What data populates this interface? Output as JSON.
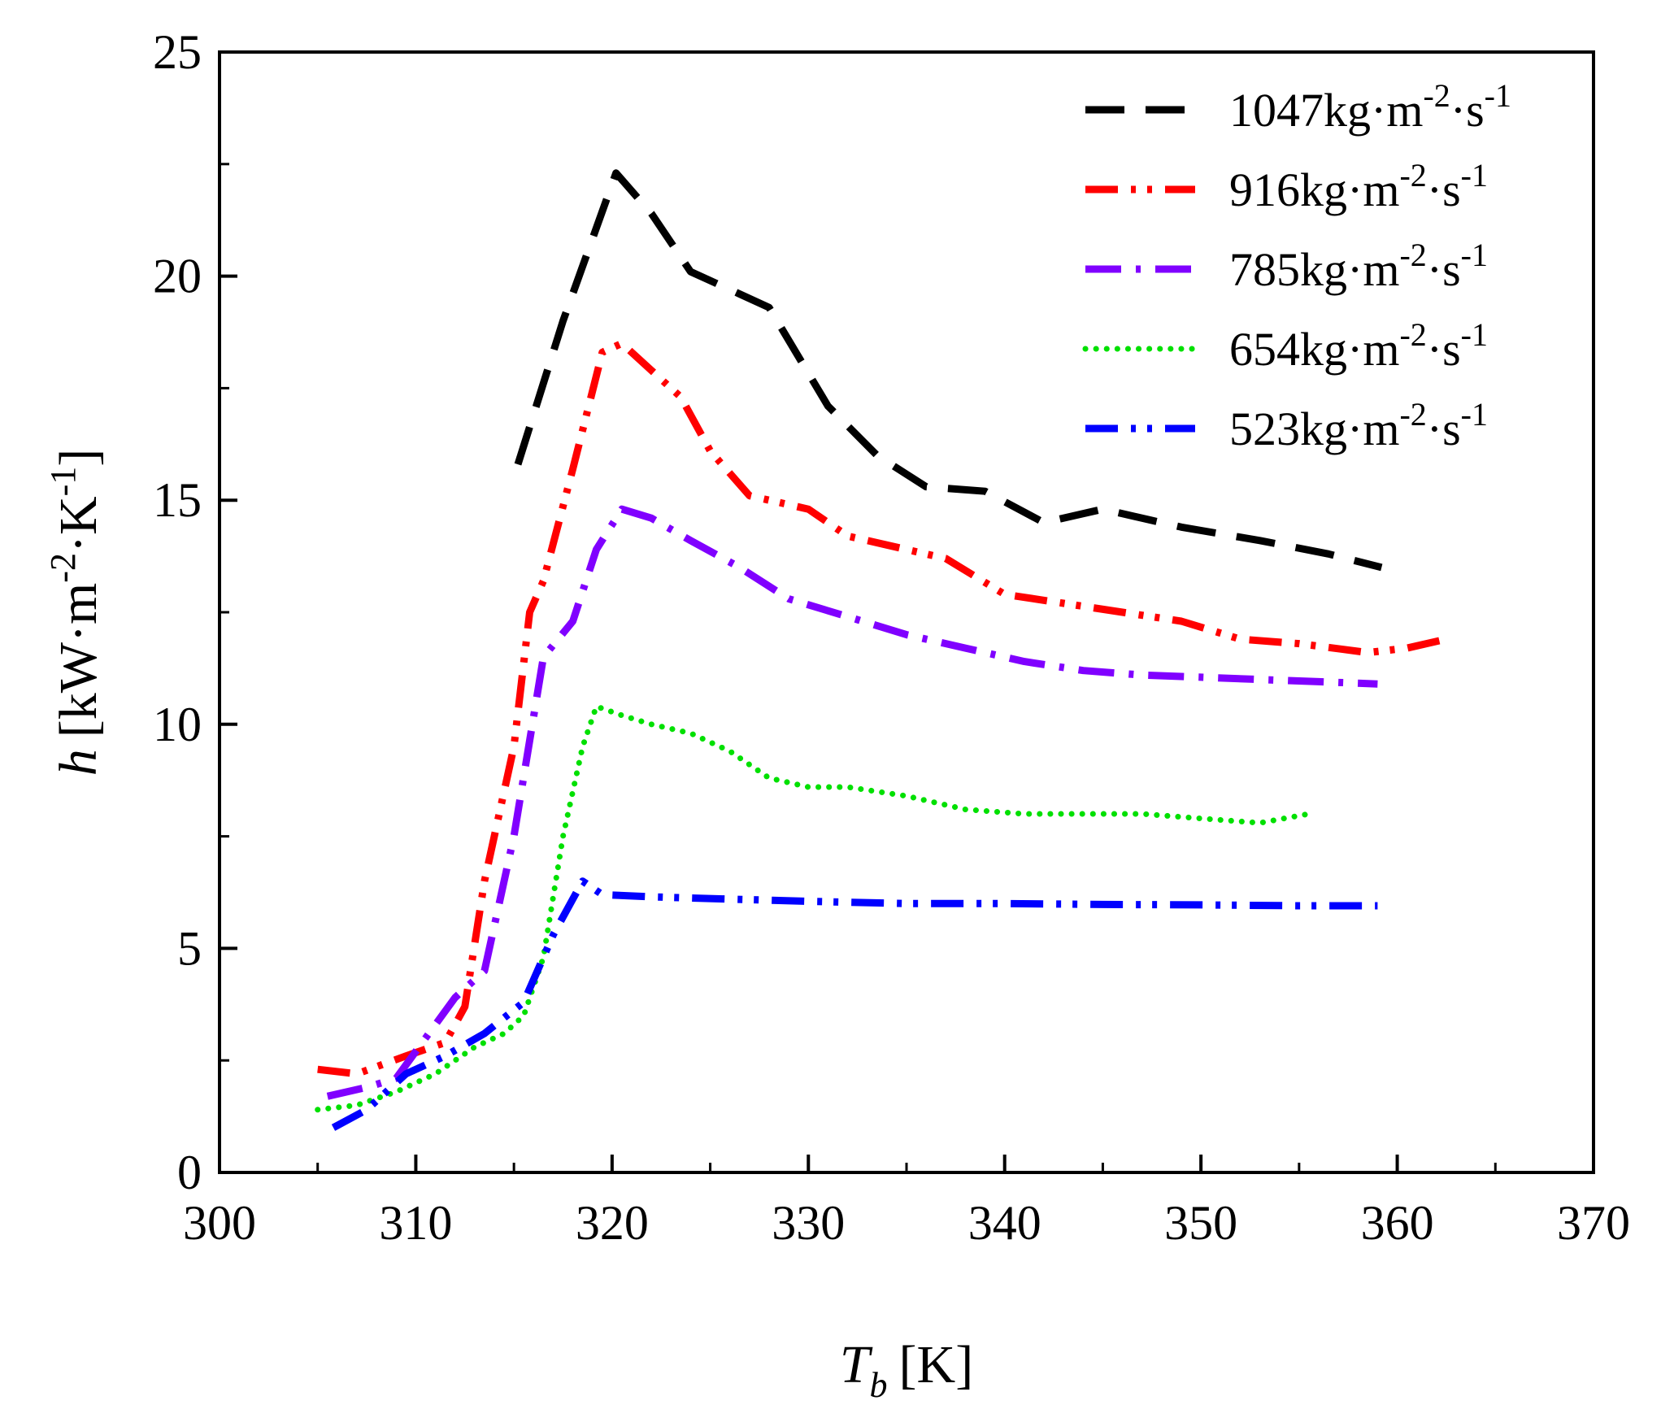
{
  "chart_data": {
    "type": "line",
    "title": "",
    "xlabel": {
      "main": "T",
      "sub": "b",
      "unit": "[K]"
    },
    "ylabel": {
      "var": "h",
      "unit_pre": "[kW·m",
      "sup1": "-2",
      "mid": "·K",
      "sup2": "-1",
      "post": "]"
    },
    "xlim": [
      300,
      370
    ],
    "ylim": [
      0,
      25
    ],
    "xticks": [
      300,
      310,
      320,
      330,
      340,
      350,
      360,
      370
    ],
    "yticks": [
      0,
      5,
      10,
      15,
      20,
      25
    ],
    "grid": false,
    "legend_position": "top-right",
    "series": [
      {
        "name": "1047kg·m-2·s-1",
        "label": {
          "pre": "1047kg·m",
          "sup1": "-2",
          "mid": "·s",
          "sup2": "-1"
        },
        "color": "#000000",
        "style": "dash",
        "x": [
          315.2,
          317.5,
          320.2,
          322,
          324,
          326.5,
          328,
          331,
          333.5,
          336,
          339,
          342,
          345,
          349,
          353,
          356.5,
          359.2
        ],
        "y": [
          15.8,
          19.0,
          22.3,
          21.4,
          20.1,
          19.6,
          19.3,
          17.1,
          16.0,
          15.3,
          15.2,
          14.5,
          14.8,
          14.4,
          14.1,
          13.8,
          13.5
        ]
      },
      {
        "name": "916kg·m-2·s-1",
        "label": {
          "pre": "916kg·m",
          "sup1": "-2",
          "mid": "·s",
          "sup2": "-1"
        },
        "color": "#ff0000",
        "style": "dash-dot-dot",
        "x": [
          305,
          307,
          309.5,
          311.5,
          312.5,
          313.5,
          315,
          315.8,
          316.5,
          318,
          319.5,
          320.5,
          322,
          323.5,
          325,
          327,
          330,
          332,
          334,
          337,
          340,
          343,
          346,
          349,
          352,
          355,
          358.5,
          360.5,
          362.5
        ],
        "y": [
          2.3,
          2.2,
          2.6,
          2.9,
          3.7,
          6.5,
          9.5,
          12.5,
          13.2,
          15.7,
          18.3,
          18.5,
          17.9,
          17.3,
          16.1,
          15.1,
          14.8,
          14.2,
          14.0,
          13.7,
          12.9,
          12.7,
          12.5,
          12.3,
          11.9,
          11.8,
          11.6,
          11.7,
          11.9
        ]
      },
      {
        "name": "785kg·m-2·s-1",
        "label": {
          "pre": "785kg·m",
          "sup1": "-2",
          "mid": "·s",
          "sup2": "-1"
        },
        "color": "#8000ff",
        "style": "dash-dot",
        "x": [
          305.5,
          307.5,
          309,
          310.5,
          312,
          313.5,
          315,
          316.5,
          318,
          319.2,
          320.5,
          322,
          324,
          326.5,
          329,
          332,
          335,
          338,
          341,
          344,
          347,
          350,
          353,
          356,
          359
        ],
        "y": [
          1.7,
          1.9,
          2.1,
          3.0,
          3.9,
          4.5,
          7.5,
          11.5,
          12.3,
          13.9,
          14.8,
          14.6,
          14.1,
          13.5,
          12.8,
          12.4,
          12.0,
          11.7,
          11.4,
          11.2,
          11.1,
          11.05,
          11.0,
          10.95,
          10.9
        ]
      },
      {
        "name": "654kg·m-2·s-1",
        "label": {
          "pre": "654kg·m",
          "sup1": "-2",
          "mid": "·s",
          "sup2": "-1"
        },
        "color": "#00e000",
        "style": "dot",
        "x": [
          305,
          307,
          309,
          311,
          313,
          314.5,
          315.5,
          316.5,
          317.5,
          318.5,
          319.2,
          320.5,
          322,
          324,
          326,
          328,
          330,
          332,
          335,
          338,
          341,
          344,
          347,
          350,
          353,
          355.5
        ],
        "y": [
          1.4,
          1.5,
          1.8,
          2.2,
          2.8,
          3.1,
          3.5,
          4.8,
          7.5,
          9.5,
          10.4,
          10.2,
          10.0,
          9.8,
          9.4,
          8.8,
          8.6,
          8.6,
          8.4,
          8.1,
          8.0,
          8.0,
          8.0,
          7.9,
          7.8,
          8.0
        ]
      },
      {
        "name": "523kg·m-2·s-1",
        "label": {
          "pre": "523kg·m",
          "sup1": "-2",
          "mid": "·s",
          "sup2": "-1"
        },
        "color": "#0000ff",
        "style": "dash-dot-dot",
        "x": [
          305.8,
          307.5,
          309.5,
          311.5,
          313.5,
          315.5,
          317,
          318.5,
          319.5,
          322,
          326,
          330,
          335,
          340,
          345,
          350,
          355,
          359
        ],
        "y": [
          1.0,
          1.4,
          2.2,
          2.6,
          3.1,
          3.8,
          5.3,
          6.5,
          6.2,
          6.15,
          6.1,
          6.05,
          6.0,
          6.0,
          5.98,
          5.97,
          5.95,
          5.95
        ]
      }
    ]
  }
}
